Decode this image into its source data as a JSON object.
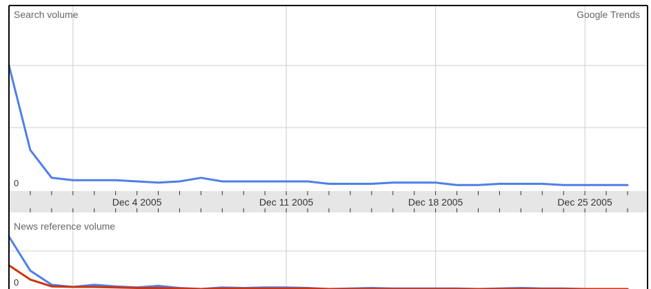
{
  "chart_data": [
    {
      "type": "line",
      "panel": "search",
      "title": "Search volume",
      "watermark": "Google Trends",
      "zero_label": "0",
      "ylim": [
        0,
        100
      ],
      "grid": true,
      "x": [
        "Nov 28 2005",
        "Nov 29 2005",
        "Nov 30 2005",
        "Dec 1 2005",
        "Dec 2 2005",
        "Dec 3 2005",
        "Dec 4 2005",
        "Dec 5 2005",
        "Dec 6 2005",
        "Dec 7 2005",
        "Dec 8 2005",
        "Dec 9 2005",
        "Dec 10 2005",
        "Dec 11 2005",
        "Dec 12 2005",
        "Dec 13 2005",
        "Dec 14 2005",
        "Dec 15 2005",
        "Dec 16 2005",
        "Dec 17 2005",
        "Dec 18 2005",
        "Dec 19 2005",
        "Dec 20 2005",
        "Dec 21 2005",
        "Dec 22 2005",
        "Dec 23 2005",
        "Dec 24 2005",
        "Dec 25 2005",
        "Dec 26 2005",
        "Dec 27 2005"
      ],
      "series": [
        {
          "color": "#4d7fe6",
          "values": [
            100,
            30,
            7,
            5,
            5,
            5,
            4,
            3,
            4,
            7,
            4,
            4,
            4,
            4,
            4,
            2,
            2,
            2,
            3,
            3,
            3,
            1,
            1,
            2,
            2,
            2,
            1,
            1,
            1,
            1
          ]
        }
      ]
    },
    {
      "type": "line",
      "panel": "news",
      "title": "News reference volume",
      "zero_label": "0",
      "ylim": [
        0,
        100
      ],
      "grid": true,
      "x": [
        "Nov 28 2005",
        "Nov 29 2005",
        "Nov 30 2005",
        "Dec 1 2005",
        "Dec 2 2005",
        "Dec 3 2005",
        "Dec 4 2005",
        "Dec 5 2005",
        "Dec 6 2005",
        "Dec 7 2005",
        "Dec 8 2005",
        "Dec 9 2005",
        "Dec 10 2005",
        "Dec 11 2005",
        "Dec 12 2005",
        "Dec 13 2005",
        "Dec 14 2005",
        "Dec 15 2005",
        "Dec 16 2005",
        "Dec 17 2005",
        "Dec 18 2005",
        "Dec 19 2005",
        "Dec 20 2005",
        "Dec 21 2005",
        "Dec 22 2005",
        "Dec 23 2005",
        "Dec 24 2005",
        "Dec 25 2005",
        "Dec 26 2005",
        "Dec 27 2005"
      ],
      "series": [
        {
          "color": "#4d7fe6",
          "values": [
            100,
            35,
            8,
            4,
            8,
            5,
            3,
            6,
            2,
            0,
            3,
            2,
            3,
            3,
            2,
            0,
            1,
            2,
            1,
            1,
            1,
            1,
            0,
            1,
            2,
            1,
            1,
            0,
            0,
            0
          ]
        },
        {
          "color": "#cc3311",
          "values": [
            45,
            18,
            5,
            4,
            4,
            3,
            2,
            2,
            1,
            0,
            1,
            1,
            1,
            1,
            1,
            0,
            0,
            0,
            0,
            0,
            0,
            0,
            0,
            0,
            0,
            0,
            0,
            0,
            0,
            0
          ]
        }
      ]
    }
  ],
  "axis": {
    "tick_labels": [
      "Dec 4 2005",
      "Dec 11 2005",
      "Dec 18 2005",
      "Dec 25 2005"
    ],
    "label_days": [
      6,
      13,
      20,
      27
    ],
    "gridline_days": [
      3,
      13,
      20,
      27
    ]
  },
  "colors": {
    "axis_band": "#e6e6e6",
    "grid": "#cccccc",
    "frame": "#000000"
  }
}
